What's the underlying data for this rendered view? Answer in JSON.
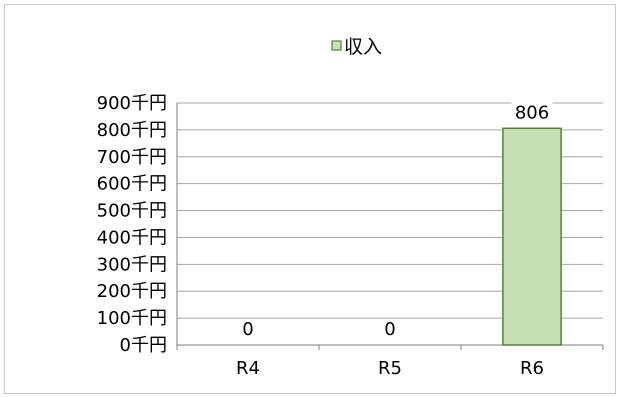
{
  "chart_data": {
    "type": "bar",
    "categories": [
      "R4",
      "R5",
      "R6"
    ],
    "series": [
      {
        "name": "収入",
        "values": [
          0,
          0,
          806
        ]
      }
    ],
    "ylim": [
      0,
      900
    ],
    "y_ticks": [
      0,
      100,
      200,
      300,
      400,
      500,
      600,
      700,
      800,
      900
    ],
    "y_tick_suffix": "千円",
    "data_labels": [
      "0",
      "0",
      "806"
    ],
    "grid": true,
    "legend": "top-center",
    "colors": {
      "bar_fill": "#c6e0b4",
      "bar_stroke": "#548235",
      "grid": "#a6a6a6",
      "axis": "#7f7f7f",
      "text": "#000000"
    }
  }
}
